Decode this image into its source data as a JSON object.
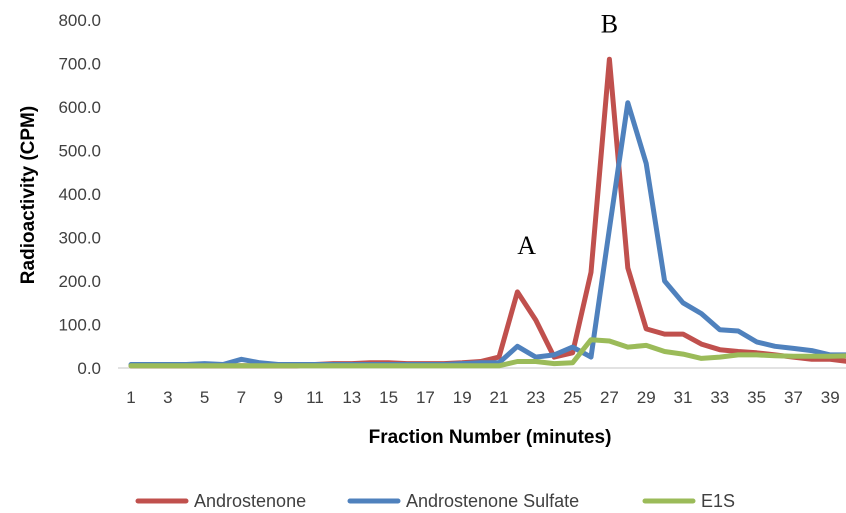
{
  "chart_data": {
    "type": "line",
    "title": "",
    "xlabel": "Fraction Number (minutes)",
    "ylabel": "Radioactivity (CPM)",
    "ylim": [
      0,
      800
    ],
    "yticks": [
      0,
      100,
      200,
      300,
      400,
      500,
      600,
      700,
      800
    ],
    "ytick_labels": [
      "0.0",
      "100.0",
      "200.0",
      "300.0",
      "400.0",
      "500.0",
      "600.0",
      "700.0",
      "800.0"
    ],
    "x": [
      1,
      2,
      3,
      4,
      5,
      6,
      7,
      8,
      9,
      10,
      11,
      12,
      13,
      14,
      15,
      16,
      17,
      18,
      19,
      20,
      21,
      22,
      23,
      24,
      25,
      26,
      27,
      28,
      29,
      30,
      31,
      32,
      33,
      34,
      35,
      36,
      37,
      38,
      39,
      40
    ],
    "xtick_labels": [
      "1",
      "3",
      "5",
      "7",
      "9",
      "11",
      "13",
      "15",
      "17",
      "19",
      "21",
      "23",
      "25",
      "27",
      "29",
      "31",
      "33",
      "35",
      "37",
      "39"
    ],
    "grid": false,
    "legend_position": "bottom",
    "series": [
      {
        "name": "Androstenone",
        "color": "#C0504D",
        "values": [
          5,
          5,
          5,
          5,
          5,
          5,
          5,
          5,
          5,
          5,
          8,
          10,
          10,
          12,
          12,
          10,
          10,
          10,
          12,
          15,
          25,
          175,
          110,
          25,
          35,
          220,
          710,
          230,
          90,
          78,
          78,
          55,
          42,
          38,
          35,
          30,
          25,
          20,
          20,
          15
        ]
      },
      {
        "name": "Androstenone Sulfate",
        "color": "#4F81BD",
        "values": [
          8,
          8,
          8,
          8,
          10,
          8,
          20,
          12,
          8,
          8,
          8,
          8,
          8,
          8,
          8,
          8,
          8,
          8,
          10,
          12,
          12,
          50,
          25,
          30,
          48,
          25,
          320,
          610,
          470,
          200,
          150,
          125,
          88,
          85,
          60,
          50,
          45,
          40,
          30,
          30
        ]
      },
      {
        "name": "E1S",
        "color": "#9BBB59",
        "values": [
          5,
          5,
          5,
          5,
          5,
          5,
          5,
          5,
          5,
          5,
          5,
          5,
          5,
          5,
          5,
          5,
          5,
          5,
          5,
          5,
          5,
          15,
          15,
          10,
          12,
          65,
          62,
          48,
          52,
          38,
          32,
          22,
          25,
          30,
          30,
          28,
          27,
          27,
          27,
          28
        ]
      }
    ],
    "annotations": [
      {
        "text": "A",
        "x": 22.5,
        "y": 280
      },
      {
        "text": "B",
        "x": 27,
        "y": 790
      }
    ]
  }
}
